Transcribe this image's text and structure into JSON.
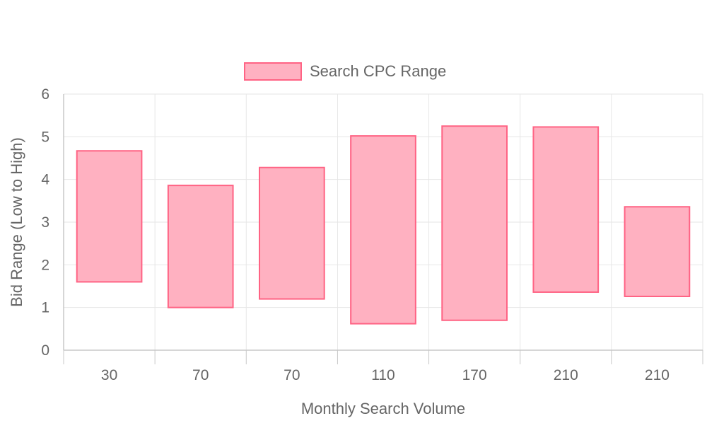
{
  "chart_data": {
    "type": "bar",
    "subtype": "floating-range",
    "legend": {
      "position": "top",
      "label": "Search CPC Range"
    },
    "xlabel": "Monthly Search Volume",
    "ylabel": "Bid Range (Low to High)",
    "categories": [
      "30",
      "70",
      "70",
      "110",
      "170",
      "210",
      "210"
    ],
    "series": [
      {
        "name": "Search CPC Range",
        "ranges": [
          [
            1.6,
            4.67
          ],
          [
            1.0,
            3.86
          ],
          [
            1.2,
            4.28
          ],
          [
            0.62,
            5.02
          ],
          [
            0.7,
            5.25
          ],
          [
            1.36,
            5.23
          ],
          [
            1.26,
            3.36
          ]
        ]
      }
    ],
    "ylim": [
      0,
      6
    ],
    "yticks": [
      "0",
      "1",
      "2",
      "3",
      "4",
      "5",
      "6"
    ],
    "grid": true,
    "colors": {
      "fill": "#ffb1c1",
      "border": "#ff6384",
      "grid": "#e6e6e6",
      "axis": "#c8c8c8",
      "text": "#666666"
    }
  }
}
